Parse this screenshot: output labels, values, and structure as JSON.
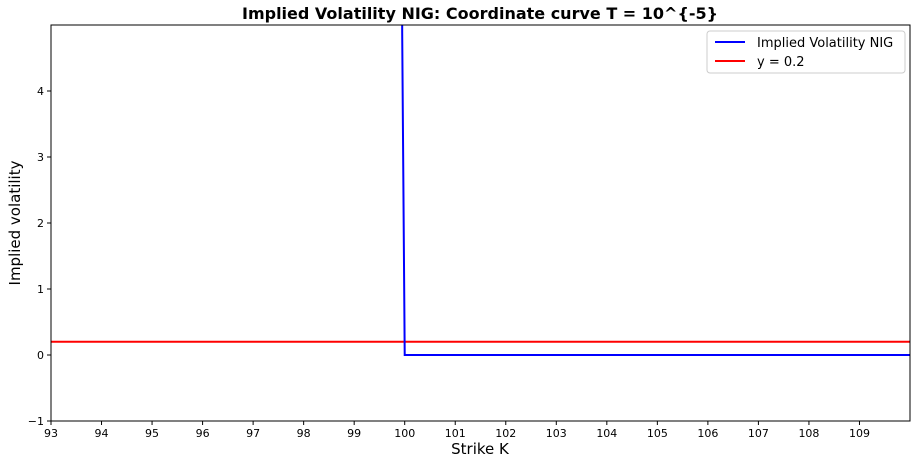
{
  "chart_data": {
    "type": "line",
    "title": "Implied Volatility NIG: Coordinate curve T = 10^{-5}",
    "xlabel": "Strike K",
    "ylabel": "Implied volatility",
    "xlim": [
      93,
      110
    ],
    "ylim": [
      -1,
      5
    ],
    "xticks": [
      93,
      94,
      95,
      96,
      97,
      98,
      99,
      100,
      101,
      102,
      103,
      104,
      105,
      106,
      107,
      108,
      109
    ],
    "yticks": [
      -1,
      0,
      1,
      2,
      3,
      4
    ],
    "grid": false,
    "legend_position": "top-right",
    "series": [
      {
        "name": "Implied Volatility NIG",
        "color": "#0000ff",
        "x": [
          99.95,
          99.95,
          100.0,
          100.05,
          110
        ],
        "y": [
          5.0,
          4.9,
          0.0,
          0.0,
          0.0
        ]
      },
      {
        "name": "y = 0.2",
        "color": "#ff0000",
        "x": [
          93,
          110
        ],
        "y": [
          0.2,
          0.2
        ]
      }
    ]
  }
}
